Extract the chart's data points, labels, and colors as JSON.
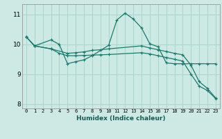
{
  "title": "",
  "xlabel": "Humidex (Indice chaleur)",
  "bg_color": "#cce9e4",
  "grid_color": "#aad4cc",
  "line_color": "#1a7a6e",
  "xlim": [
    -0.5,
    23.5
  ],
  "ylim": [
    7.85,
    11.35
  ],
  "yticks": [
    8,
    9,
    10,
    11
  ],
  "xticks": [
    0,
    1,
    2,
    3,
    4,
    5,
    6,
    7,
    8,
    9,
    10,
    11,
    12,
    13,
    14,
    15,
    16,
    17,
    18,
    19,
    20,
    21,
    22,
    23
  ],
  "series": [
    {
      "x": [
        0,
        1,
        3,
        4,
        5,
        6,
        7,
        8,
        10,
        11,
        12,
        13,
        14,
        15,
        16,
        17,
        18,
        19,
        20,
        21,
        22,
        23
      ],
      "y": [
        10.25,
        9.95,
        10.15,
        10.0,
        9.35,
        9.42,
        9.48,
        9.62,
        9.97,
        10.82,
        11.05,
        10.85,
        10.55,
        10.02,
        9.92,
        9.38,
        9.35,
        9.35,
        9.35,
        9.35,
        9.35,
        9.35
      ]
    },
    {
      "x": [
        0,
        1,
        3,
        5,
        6,
        7,
        8,
        9,
        10,
        14,
        15,
        16,
        17,
        18,
        19,
        20,
        21,
        22,
        23
      ],
      "y": [
        10.25,
        9.95,
        9.85,
        9.7,
        9.72,
        9.75,
        9.8,
        9.82,
        9.85,
        9.95,
        9.88,
        9.82,
        9.76,
        9.7,
        9.65,
        9.3,
        8.75,
        8.52,
        8.2
      ]
    },
    {
      "x": [
        0,
        1,
        3,
        4,
        5,
        6,
        7,
        8,
        9,
        10,
        14,
        15,
        16,
        17,
        18,
        19,
        20,
        21,
        22,
        23
      ],
      "y": [
        10.25,
        9.95,
        9.85,
        9.7,
        9.62,
        9.62,
        9.63,
        9.64,
        9.65,
        9.66,
        9.72,
        9.68,
        9.62,
        9.56,
        9.5,
        9.44,
        9.0,
        8.6,
        8.45,
        8.18
      ]
    }
  ]
}
